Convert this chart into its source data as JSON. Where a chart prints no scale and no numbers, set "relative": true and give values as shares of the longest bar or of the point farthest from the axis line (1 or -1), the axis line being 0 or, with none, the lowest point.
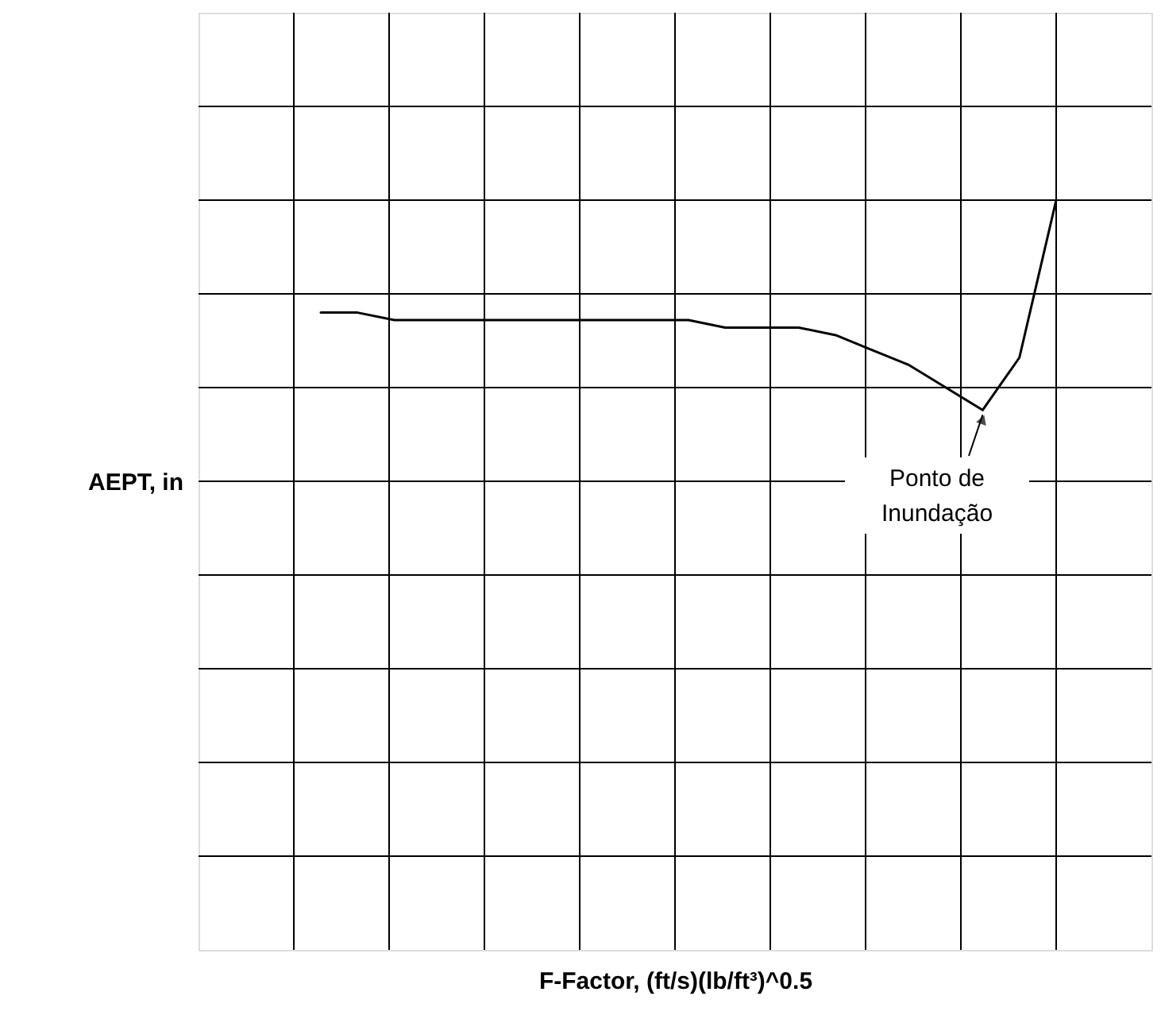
{
  "chart_data": {
    "type": "line",
    "relative": true,
    "xlabel": "F-Factor, (ft/s)(lb/ft³)^0.5",
    "ylabel": "AEPT, in",
    "categories": [
      null,
      null,
      null,
      null,
      null,
      null,
      null,
      null,
      null,
      null,
      null,
      null,
      null,
      null,
      null,
      null,
      null,
      null,
      null,
      null,
      null
    ],
    "series": [
      {
        "color": "#000000",
        "values": [
          0.85,
          0.85,
          0.84,
          0.84,
          0.84,
          0.84,
          0.84,
          0.84,
          0.84,
          0.84,
          0.84,
          0.83,
          0.83,
          0.83,
          0.82,
          0.8,
          0.78,
          0.75,
          0.72,
          0.79,
          1.0
        ]
      }
    ],
    "grid": true,
    "marker": "none",
    "line_style": "solid",
    "annotations": [
      "Ponto de\nInundação"
    ]
  }
}
